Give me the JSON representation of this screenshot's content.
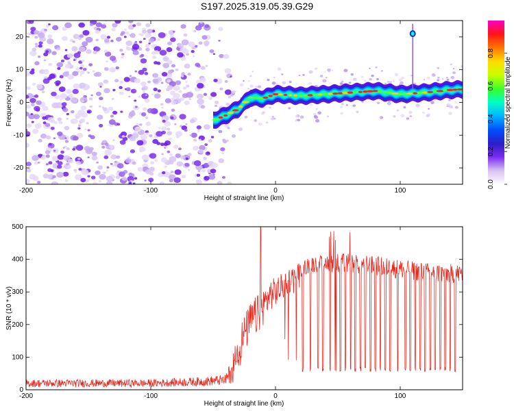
{
  "figure_title": "S197.2025.319.05.39.G29",
  "chart_data": [
    {
      "type": "heatmap",
      "title": "",
      "xlabel": "Height of straight line (km)",
      "ylabel": "Frequency (Hz)",
      "xlim": [
        -200,
        150
      ],
      "ylim": [
        -25,
        25
      ],
      "xticks": [
        -200,
        -100,
        0,
        100
      ],
      "yticks": [
        -20,
        -10,
        0,
        10,
        20
      ],
      "colorbar": {
        "label": "Normalized spectral amplitude",
        "range": [
          0,
          1
        ],
        "ticks": [
          "0.0",
          "0.2",
          "0.4",
          "0.6",
          "0.8"
        ],
        "colors": [
          "#ffffff",
          "#d6c2f2",
          "#7b2cf0",
          "#2a1ec8",
          "#0050ff",
          "#00b4ff",
          "#00ffc8",
          "#3cff28",
          "#c8ff00",
          "#ffdc00",
          "#ff7800",
          "#ff1414",
          "#ff00c8"
        ]
      },
      "ridge": {
        "description_points_height_km": [
          -50,
          -40,
          -30,
          -20,
          -10,
          0,
          20,
          40,
          60,
          80,
          100,
          120,
          140,
          150
        ],
        "frequency_hz": [
          -5.5,
          -4,
          -2,
          1.5,
          1.2,
          2.5,
          2.0,
          2.5,
          3.0,
          3.5,
          2.5,
          3.0,
          3.8,
          4.0
        ]
      },
      "noise_region_km": [
        -200,
        -45
      ],
      "spike": {
        "height_km": 110,
        "frequency_hz": 21
      }
    },
    {
      "type": "line",
      "title": "",
      "xlabel": "Height of straight line (km)",
      "ylabel": "SNR (10 * v/v)",
      "xlim": [
        -200,
        150
      ],
      "ylim": [
        0,
        500
      ],
      "xticks": [
        -200,
        -100,
        0,
        100
      ],
      "yticks": [
        0,
        100,
        200,
        300,
        400,
        500
      ],
      "line_color": "#e8281e",
      "series": [
        {
          "name": "SNR",
          "x_profile": [
            -200,
            -100,
            -60,
            -40,
            -35,
            -30,
            -20,
            -12,
            -5,
            0,
            10,
            20,
            30,
            50,
            80,
            100,
            120,
            150
          ],
          "y_baseline": [
            20,
            20,
            25,
            30,
            60,
            130,
            210,
            240,
            290,
            300,
            330,
            370,
            385,
            390,
            380,
            370,
            360,
            355
          ],
          "y_noise": [
            12,
            12,
            14,
            16,
            40,
            60,
            60,
            60,
            50,
            45,
            40,
            25,
            25,
            30,
            30,
            30,
            30,
            30
          ],
          "dropouts_x": [
            22,
            28,
            34,
            38,
            44,
            48,
            52,
            56,
            60,
            64,
            68,
            72,
            76,
            80,
            84,
            88,
            92,
            98,
            104,
            108,
            112,
            116,
            120,
            124,
            128,
            132,
            136,
            140,
            144
          ],
          "dropout_y": 55,
          "peak": {
            "x": -12,
            "y": 500
          }
        }
      ]
    }
  ]
}
